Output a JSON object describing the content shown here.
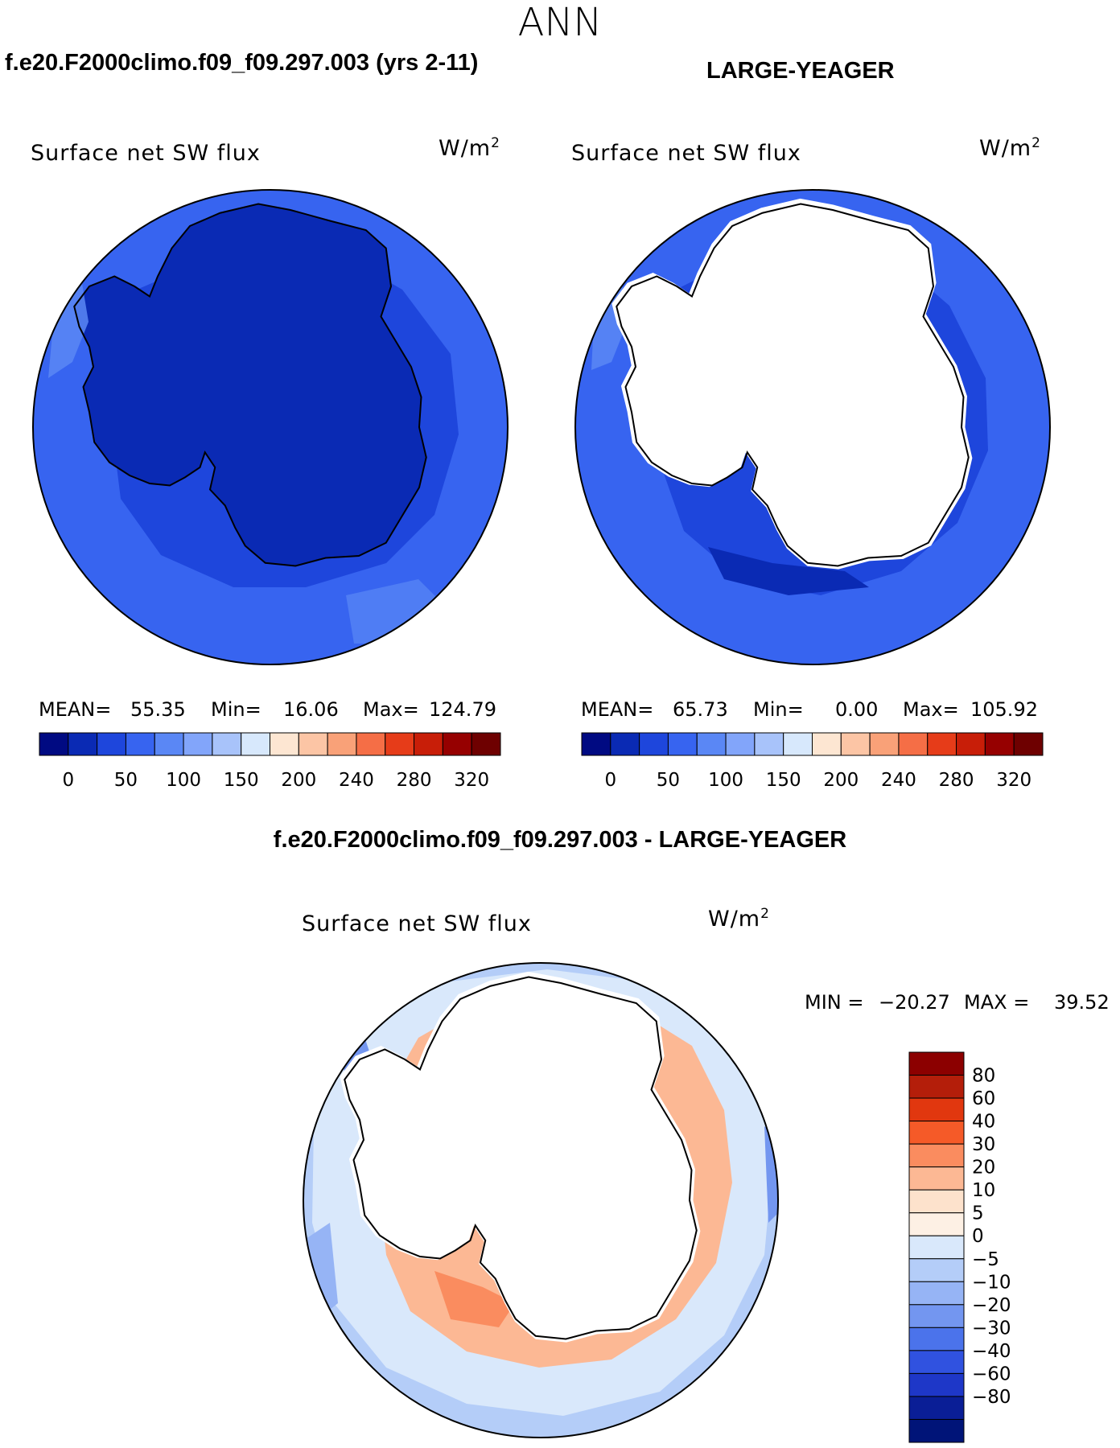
{
  "season": "ANN",
  "top_left": {
    "case_title": "f.e20.F2000climo.f09_f09.297.003 (yrs 2-11)",
    "variable": "Surface net SW flux",
    "units_base": "W/m",
    "units_exp": "2",
    "stats": {
      "mean_label": "MEAN=",
      "mean": "55.35",
      "min_label": "Min=",
      "min": "16.06",
      "max_label": "Max=",
      "max": "124.79"
    }
  },
  "top_right": {
    "case_title": "LARGE-YEAGER",
    "variable": "Surface net SW flux",
    "units_base": "W/m",
    "units_exp": "2",
    "stats": {
      "mean_label": "MEAN=",
      "mean": "65.73",
      "min_label": "Min=",
      "min": "0.00",
      "max_label": "Max=",
      "max": "105.92"
    }
  },
  "diff": {
    "title": "f.e20.F2000climo.f09_f09.297.003 - LARGE-YEAGER",
    "variable": "Surface net SW flux",
    "units_base": "W/m",
    "units_exp": "2",
    "stats": {
      "min_label": "MIN =",
      "min": "−20.27",
      "max_label": "MAX =",
      "max": "39.52"
    }
  },
  "colorbar_field": {
    "colors": [
      "#000a82",
      "#0a2ab4",
      "#1e46dc",
      "#3764f0",
      "#5a87f5",
      "#82a5fa",
      "#a8c3fa",
      "#d7e8fc",
      "#fde6d2",
      "#fcc5a5",
      "#f9a178",
      "#f56e46",
      "#e63c19",
      "#c81e08",
      "#960000",
      "#6e0000"
    ],
    "tick_labels": [
      "0",
      "50",
      "100",
      "150",
      "200",
      "240",
      "280",
      "320"
    ]
  },
  "colorbar_diff": {
    "colors": [
      "#8c0000",
      "#b41e0a",
      "#e1370f",
      "#f55a28",
      "#fa8c5f",
      "#fcb894",
      "#fde2cc",
      "#fdf0e4",
      "#d9e8fb",
      "#b4cdf8",
      "#96b4f5",
      "#7396f0",
      "#4b73eb",
      "#3052e0",
      "#1e37c8",
      "#0a1e96",
      "#001478"
    ],
    "tick_labels": [
      "80",
      "60",
      "40",
      "30",
      "20",
      "10",
      "5",
      "0",
      "−5",
      "−10",
      "−20",
      "−30",
      "−40",
      "−60",
      "−80"
    ]
  }
}
